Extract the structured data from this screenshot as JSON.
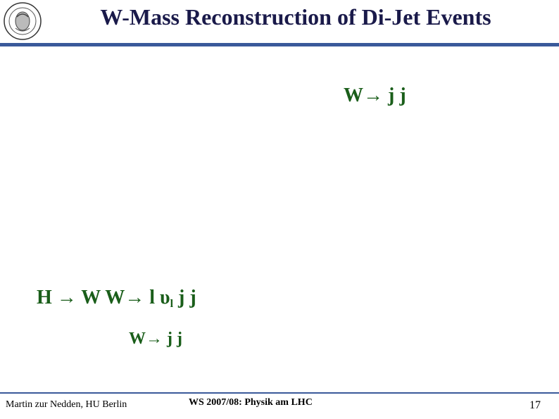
{
  "slide": {
    "title": "W-Mass Reconstruction of Di-Jet Events"
  },
  "logo": {
    "icon": "university-seal-icon"
  },
  "labels": {
    "w_jj_top": "W→ j j",
    "higgs_prefix": "H → W W→ l υ",
    "higgs_sub": "l",
    "higgs_suffix": " j j",
    "w_jj_bottom": "W→ j j"
  },
  "footer": {
    "author": "Martin zur Nedden, HU Berlin",
    "course": "WS 2007/08: Physik am LHC",
    "page": "17"
  },
  "colors": {
    "title": "#1a1a4a",
    "rule": "#3a5a9a",
    "formula": "#1a5e1a"
  }
}
